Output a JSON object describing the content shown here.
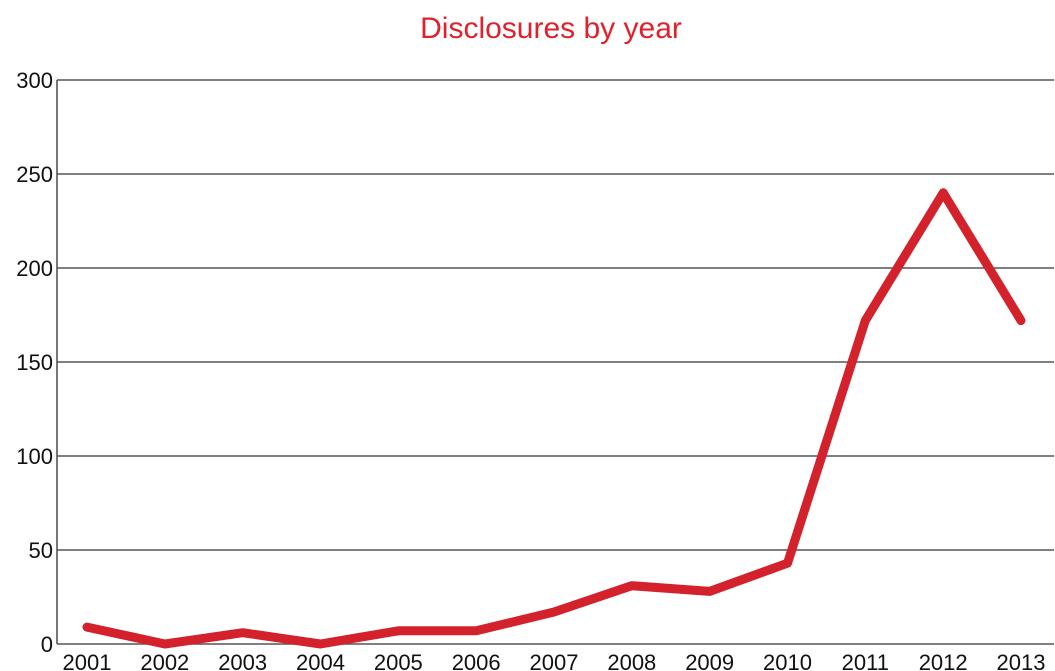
{
  "chart_data": {
    "type": "line",
    "title": "Disclosures by year",
    "xlabel": "",
    "ylabel": "",
    "x": [
      "2001",
      "2002",
      "2003",
      "2004",
      "2005",
      "2006",
      "2007",
      "2008",
      "2009",
      "2010",
      "2011",
      "2012",
      "2013"
    ],
    "series": [
      {
        "values": [
          9,
          0,
          6,
          0,
          7,
          7,
          17,
          31,
          28,
          43,
          172,
          240,
          172
        ],
        "color": "#d3222c"
      }
    ],
    "ylim": [
      0,
      300
    ],
    "yticks": [
      0,
      50,
      100,
      150,
      200,
      250,
      300
    ],
    "grid": true,
    "legend": "none",
    "title_color": "#e0202a"
  }
}
